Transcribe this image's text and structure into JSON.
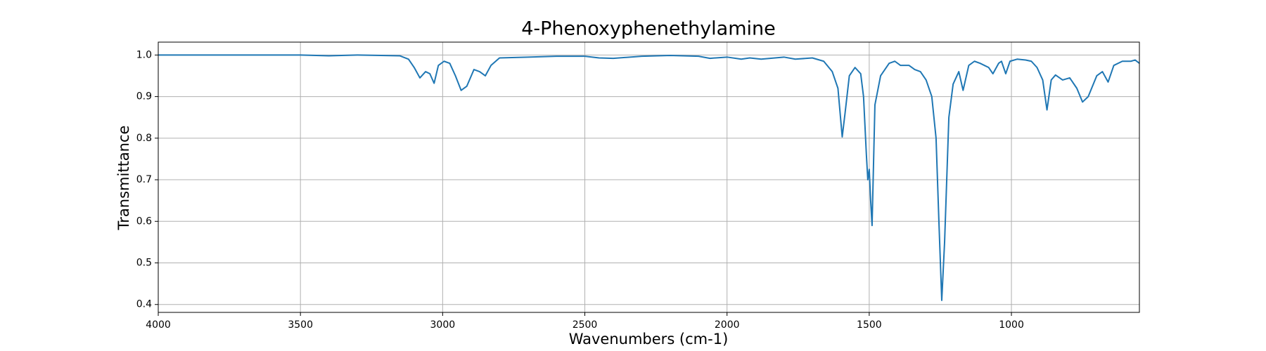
{
  "chart_data": {
    "type": "line",
    "title": "4-Phenoxyphenethylamine",
    "x_label": "Wavenumbers (cm-1)",
    "y_label": "Transmittance",
    "x": [
      4000,
      3800,
      3600,
      3500,
      3400,
      3300,
      3150,
      3120,
      3100,
      3080,
      3060,
      3045,
      3030,
      3015,
      2995,
      2975,
      2955,
      2935,
      2915,
      2890,
      2870,
      2850,
      2830,
      2800,
      2700,
      2600,
      2500,
      2450,
      2400,
      2300,
      2200,
      2100,
      2060,
      2000,
      1950,
      1920,
      1880,
      1800,
      1760,
      1700,
      1660,
      1630,
      1610,
      1595,
      1585,
      1570,
      1550,
      1530,
      1520,
      1510,
      1505,
      1500,
      1495,
      1490,
      1480,
      1460,
      1430,
      1410,
      1390,
      1360,
      1340,
      1320,
      1300,
      1280,
      1265,
      1255,
      1245,
      1235,
      1220,
      1205,
      1185,
      1170,
      1150,
      1130,
      1110,
      1095,
      1080,
      1065,
      1045,
      1035,
      1020,
      1005,
      980,
      950,
      930,
      910,
      890,
      875,
      860,
      845,
      820,
      795,
      770,
      750,
      730,
      700,
      680,
      660,
      640,
      610,
      580,
      565,
      550
    ],
    "series": [
      {
        "color": "#1f77b4",
        "values": [
          1.0,
          1.0,
          1.0,
          1.0,
          0.998,
          1.0,
          0.998,
          0.99,
          0.97,
          0.945,
          0.96,
          0.955,
          0.932,
          0.975,
          0.985,
          0.98,
          0.95,
          0.915,
          0.925,
          0.965,
          0.96,
          0.95,
          0.975,
          0.993,
          0.995,
          0.997,
          0.997,
          0.993,
          0.992,
          0.997,
          0.999,
          0.997,
          0.992,
          0.995,
          0.99,
          0.993,
          0.99,
          0.995,
          0.99,
          0.993,
          0.985,
          0.96,
          0.92,
          0.803,
          0.86,
          0.95,
          0.97,
          0.955,
          0.9,
          0.76,
          0.7,
          0.725,
          0.65,
          0.59,
          0.88,
          0.95,
          0.98,
          0.985,
          0.975,
          0.975,
          0.965,
          0.96,
          0.94,
          0.9,
          0.8,
          0.6,
          0.41,
          0.55,
          0.85,
          0.93,
          0.96,
          0.915,
          0.975,
          0.985,
          0.98,
          0.975,
          0.97,
          0.955,
          0.98,
          0.985,
          0.955,
          0.985,
          0.99,
          0.988,
          0.985,
          0.97,
          0.94,
          0.868,
          0.94,
          0.952,
          0.94,
          0.945,
          0.92,
          0.887,
          0.9,
          0.95,
          0.96,
          0.935,
          0.975,
          0.985,
          0.985,
          0.988,
          0.98
        ]
      }
    ],
    "xlim": [
      4000,
      550
    ],
    "ylim": [
      0.381,
      1.031
    ],
    "xticks": [
      4000,
      3500,
      3000,
      2500,
      2000,
      1500,
      1000
    ],
    "yticks": [
      0.4,
      0.5,
      0.6,
      0.7,
      0.8,
      0.9,
      {
        "value": 1,
        "label": "1.0"
      }
    ],
    "grid": true
  }
}
